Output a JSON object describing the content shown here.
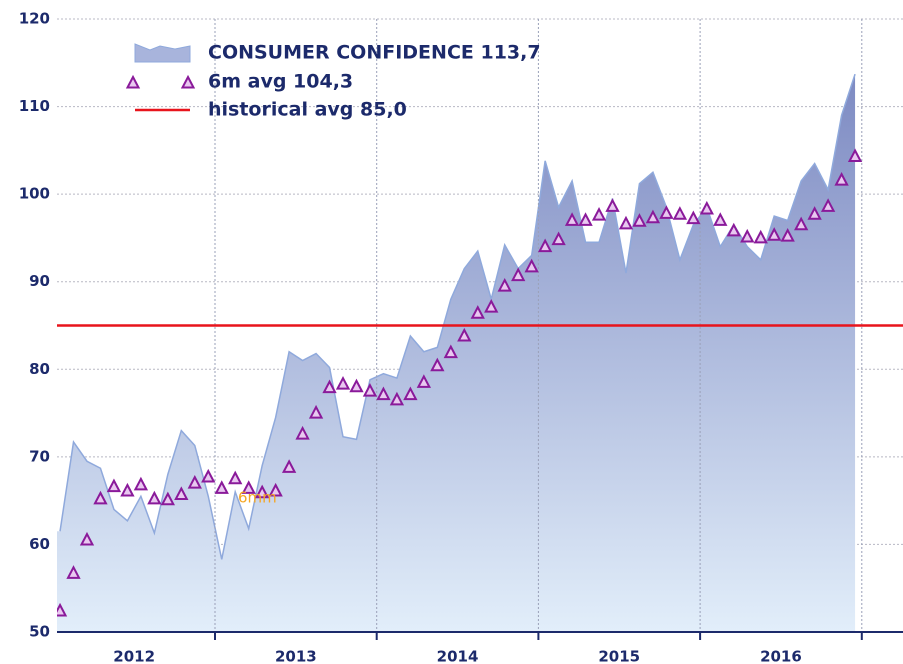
{
  "chart_data": {
    "type": "area",
    "categories": [
      null,
      null,
      null,
      null,
      null,
      null,
      null,
      null,
      null,
      null,
      null,
      null,
      null,
      null,
      null,
      null,
      null,
      null,
      null,
      null,
      null,
      null,
      null,
      null,
      null,
      null,
      null,
      null,
      null,
      null,
      null,
      null,
      null,
      null,
      null,
      null,
      null,
      null,
      null,
      null,
      null,
      null,
      null,
      null,
      null,
      null,
      null,
      null,
      null,
      null,
      null,
      null,
      null,
      null,
      null,
      null,
      null,
      null,
      null,
      null
    ],
    "year_labels": [
      "2012",
      "2013",
      "2014",
      "2015",
      "2016"
    ],
    "series": [
      {
        "name": "CONSUMER CONFIDENCE 113,7",
        "type": "area",
        "color": "#8fa9dc",
        "values": [
          61.5,
          71.7,
          69.5,
          68.7,
          64,
          62.7,
          65.5,
          61.3,
          68,
          73,
          71.3,
          65.5,
          58.3,
          66,
          61.8,
          69,
          74.5,
          82,
          81,
          81.8,
          80.2,
          72.3,
          72,
          78.8,
          79.5,
          79,
          83.8,
          82,
          82.5,
          88,
          91.5,
          93.5,
          88,
          94.2,
          91.5,
          93,
          103.8,
          98.5,
          101.5,
          94.5,
          94.5,
          99.5,
          91,
          101.2,
          102.5,
          98.5,
          92.5,
          96.5,
          98.5,
          94,
          96.5,
          94,
          92.5,
          97.5,
          97,
          101.5,
          103.5,
          100.5,
          109,
          113.7
        ]
      },
      {
        "name": "6m avg 104,3",
        "type": "triangle",
        "color": "#8a1a9a",
        "values": [
          52.4,
          56.7,
          60.5,
          65.2,
          66.6,
          66.1,
          66.8,
          65.2,
          65.1,
          65.7,
          67,
          67.7,
          66.4,
          67.5,
          66.4,
          65.9,
          66.1,
          68.8,
          72.6,
          75,
          77.9,
          78.3,
          78,
          77.5,
          77.1,
          76.5,
          77.1,
          78.5,
          80.4,
          81.9,
          83.8,
          86.4,
          87.1,
          89.5,
          90.7,
          91.7,
          94,
          94.8,
          97,
          97,
          97.6,
          98.6,
          96.6,
          96.9,
          97.3,
          97.8,
          97.7,
          97.2,
          98.3,
          97,
          95.8,
          95.1,
          95,
          95.3,
          95.2,
          96.5,
          97.7,
          98.6,
          101.6,
          104.3
        ]
      }
    ],
    "reference_lines": [
      {
        "name": "historical avg 85,0",
        "value": 85,
        "color": "#e8141c"
      }
    ],
    "annotations": [
      {
        "text": "6mm"
      }
    ],
    "ylim": [
      50,
      120
    ],
    "yticks": [
      50,
      60,
      70,
      80,
      90,
      100,
      110,
      120
    ],
    "grid": true
  }
}
